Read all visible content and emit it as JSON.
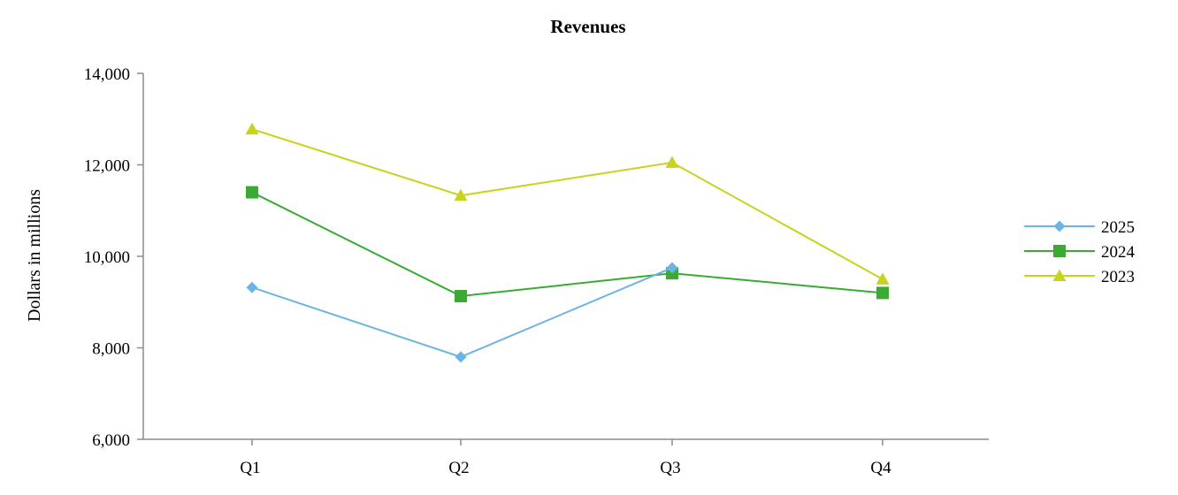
{
  "chart_data": {
    "type": "line",
    "title": "Revenues",
    "xlabel": "",
    "ylabel": "Dollars in millions",
    "categories": [
      "Q1",
      "Q2",
      "Q3",
      "Q4"
    ],
    "ylim": [
      6000,
      14000
    ],
    "yticks": [
      6000,
      8000,
      10000,
      12000,
      14000
    ],
    "ytick_labels": [
      "6,000",
      "8,000",
      "10,000",
      "12,000",
      "14,000"
    ],
    "grid": false,
    "legend_position": "right",
    "series": [
      {
        "name": "2025",
        "values": [
          9320,
          7800,
          9750,
          null
        ],
        "color": "#6cb4e4",
        "marker": "diamond"
      },
      {
        "name": "2024",
        "values": [
          11400,
          9130,
          9630,
          9200
        ],
        "color": "#3aaa35",
        "marker": "square"
      },
      {
        "name": "2023",
        "values": [
          12780,
          11330,
          12050,
          9500
        ],
        "color": "#c8d31d",
        "marker": "triangle"
      }
    ]
  }
}
